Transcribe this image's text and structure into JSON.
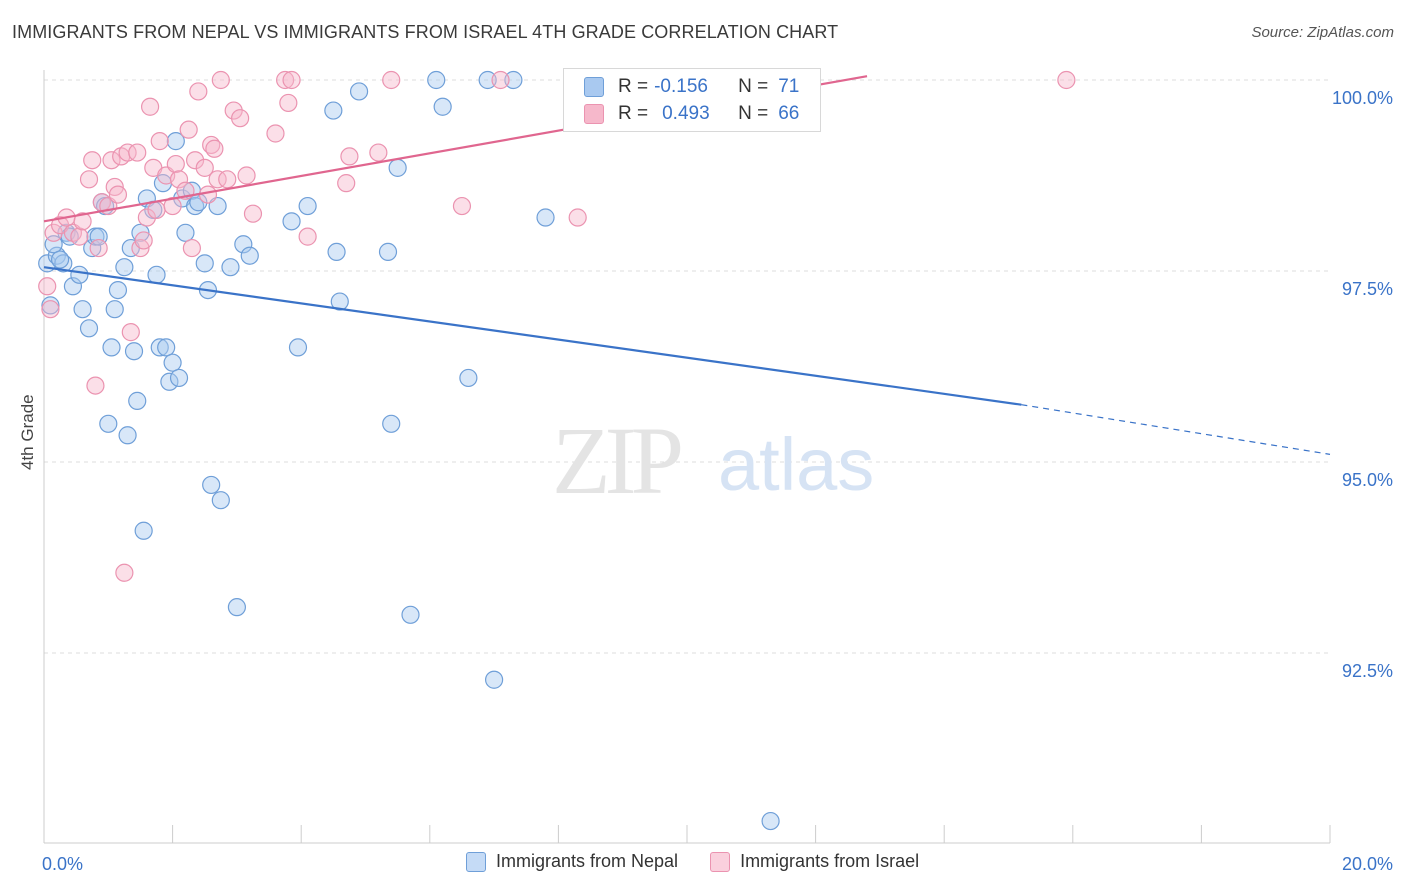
{
  "title": "IMMIGRANTS FROM NEPAL VS IMMIGRANTS FROM ISRAEL 4TH GRADE CORRELATION CHART",
  "source": "Source: ZipAtlas.com",
  "watermark": {
    "zip": "ZIP",
    "atlas": "atlas"
  },
  "stats": {
    "nepal": {
      "r_label": "R =",
      "r_value": "-0.156",
      "n_label": "N =",
      "n_value": "71"
    },
    "israel": {
      "r_label": "R =",
      "r_value": "0.493",
      "n_label": "N =",
      "n_value": "66"
    }
  },
  "legend": {
    "nepal": "Immigrants from Nepal",
    "israel": "Immigrants from Israel"
  },
  "colors": {
    "nepal_fill": "#a9c9f0",
    "nepal_stroke": "#6f9fd8",
    "nepal_line": "#3a73c8",
    "israel_fill": "#f6b8cb",
    "israel_stroke": "#eb93b0",
    "israel_line": "#e0668f",
    "axis_text": "#3a73c8",
    "grid": "#dddddd"
  },
  "chart_data": {
    "type": "scatter",
    "title": "IMMIGRANTS FROM NEPAL VS IMMIGRANTS FROM ISRAEL 4TH GRADE CORRELATION CHART",
    "xlabel": "",
    "ylabel": "4th Grade",
    "xlim": [
      0,
      20
    ],
    "ylim": [
      90.2,
      100.4
    ],
    "x_tick_labels": [
      "0.0%",
      "20.0%"
    ],
    "y_ticks": [
      92.5,
      95.0,
      97.5,
      100.0
    ],
    "y_tick_labels": [
      "92.5%",
      "95.0%",
      "97.5%",
      "100.0%"
    ],
    "grid": true,
    "legend_position": "bottom",
    "series": [
      {
        "name": "Immigrants from Nepal",
        "trend": {
          "x": [
            0,
            15.2
          ],
          "y": [
            97.55,
            95.75
          ],
          "dashed_to": [
            20.0,
            95.1
          ]
        },
        "points": [
          [
            0.05,
            97.6
          ],
          [
            0.1,
            97.05
          ],
          [
            0.2,
            97.7
          ],
          [
            0.3,
            97.6
          ],
          [
            0.35,
            98.0
          ],
          [
            0.4,
            97.95
          ],
          [
            0.45,
            97.3
          ],
          [
            0.55,
            97.45
          ],
          [
            0.6,
            97.0
          ],
          [
            0.7,
            96.75
          ],
          [
            0.75,
            97.8
          ],
          [
            0.8,
            97.95
          ],
          [
            0.85,
            97.95
          ],
          [
            0.9,
            98.4
          ],
          [
            0.95,
            98.35
          ],
          [
            1.0,
            95.5
          ],
          [
            1.05,
            96.5
          ],
          [
            1.1,
            97.0
          ],
          [
            1.15,
            97.25
          ],
          [
            1.25,
            97.55
          ],
          [
            1.3,
            95.35
          ],
          [
            1.35,
            97.8
          ],
          [
            1.4,
            96.45
          ],
          [
            1.45,
            95.8
          ],
          [
            1.5,
            98.0
          ],
          [
            1.6,
            98.45
          ],
          [
            1.7,
            98.3
          ],
          [
            1.75,
            97.45
          ],
          [
            1.8,
            96.5
          ],
          [
            1.85,
            98.65
          ],
          [
            1.9,
            96.5
          ],
          [
            1.95,
            96.05
          ],
          [
            2.0,
            96.3
          ],
          [
            2.05,
            99.2
          ],
          [
            2.1,
            96.1
          ],
          [
            2.15,
            98.45
          ],
          [
            2.2,
            98.0
          ],
          [
            2.3,
            98.55
          ],
          [
            2.35,
            98.35
          ],
          [
            2.4,
            98.4
          ],
          [
            2.5,
            97.6
          ],
          [
            2.55,
            97.25
          ],
          [
            2.6,
            94.7
          ],
          [
            2.7,
            98.35
          ],
          [
            2.75,
            94.5
          ],
          [
            2.9,
            97.55
          ],
          [
            3.0,
            93.1
          ],
          [
            3.1,
            97.85
          ],
          [
            3.2,
            97.7
          ],
          [
            3.85,
            98.15
          ],
          [
            3.95,
            96.5
          ],
          [
            4.1,
            98.35
          ],
          [
            4.5,
            99.6
          ],
          [
            4.55,
            97.75
          ],
          [
            4.6,
            97.1
          ],
          [
            4.9,
            99.85
          ],
          [
            5.35,
            97.75
          ],
          [
            5.4,
            95.5
          ],
          [
            5.5,
            98.85
          ],
          [
            5.7,
            93.0
          ],
          [
            6.1,
            100.0
          ],
          [
            6.2,
            99.65
          ],
          [
            6.6,
            96.1
          ],
          [
            6.9,
            100.0
          ],
          [
            7.0,
            92.15
          ],
          [
            7.3,
            100.0
          ],
          [
            7.8,
            98.2
          ],
          [
            11.3,
            90.3
          ],
          [
            0.15,
            97.85
          ],
          [
            0.25,
            97.65
          ],
          [
            1.55,
            94.1
          ]
        ]
      },
      {
        "name": "Immigrants from Israel",
        "trend": {
          "x": [
            0,
            12.8
          ],
          "y": [
            98.15,
            100.05
          ]
        },
        "points": [
          [
            0.05,
            97.3
          ],
          [
            0.1,
            97.0
          ],
          [
            0.15,
            98.0
          ],
          [
            0.25,
            98.1
          ],
          [
            0.35,
            98.2
          ],
          [
            0.45,
            98.0
          ],
          [
            0.55,
            97.95
          ],
          [
            0.6,
            98.15
          ],
          [
            0.7,
            98.7
          ],
          [
            0.75,
            98.95
          ],
          [
            0.8,
            96.0
          ],
          [
            0.85,
            97.8
          ],
          [
            0.9,
            98.4
          ],
          [
            1.0,
            98.35
          ],
          [
            1.05,
            98.95
          ],
          [
            1.1,
            98.6
          ],
          [
            1.15,
            98.5
          ],
          [
            1.2,
            99.0
          ],
          [
            1.25,
            93.55
          ],
          [
            1.3,
            99.05
          ],
          [
            1.35,
            96.7
          ],
          [
            1.5,
            97.8
          ],
          [
            1.55,
            97.9
          ],
          [
            1.6,
            98.2
          ],
          [
            1.65,
            99.65
          ],
          [
            1.7,
            98.85
          ],
          [
            1.75,
            98.3
          ],
          [
            1.8,
            99.2
          ],
          [
            1.9,
            98.75
          ],
          [
            2.0,
            98.35
          ],
          [
            2.05,
            98.9
          ],
          [
            2.1,
            98.7
          ],
          [
            2.2,
            98.55
          ],
          [
            2.25,
            99.35
          ],
          [
            2.3,
            97.8
          ],
          [
            2.35,
            98.95
          ],
          [
            2.4,
            99.85
          ],
          [
            2.5,
            98.85
          ],
          [
            2.6,
            99.15
          ],
          [
            2.65,
            99.1
          ],
          [
            2.7,
            98.7
          ],
          [
            2.75,
            100.0
          ],
          [
            2.85,
            98.7
          ],
          [
            2.95,
            99.6
          ],
          [
            3.05,
            99.5
          ],
          [
            3.15,
            98.75
          ],
          [
            3.25,
            98.25
          ],
          [
            3.6,
            99.3
          ],
          [
            3.75,
            100.0
          ],
          [
            3.8,
            99.7
          ],
          [
            3.85,
            100.0
          ],
          [
            4.1,
            97.95
          ],
          [
            4.7,
            98.65
          ],
          [
            4.75,
            99.0
          ],
          [
            5.2,
            99.05
          ],
          [
            5.4,
            100.0
          ],
          [
            6.5,
            98.35
          ],
          [
            7.1,
            100.0
          ],
          [
            8.3,
            98.2
          ],
          [
            10.4,
            100.0
          ],
          [
            11.0,
            100.0
          ],
          [
            11.5,
            100.0
          ],
          [
            11.8,
            100.0
          ],
          [
            15.9,
            100.0
          ],
          [
            2.55,
            98.5
          ],
          [
            1.45,
            99.05
          ]
        ]
      }
    ]
  }
}
